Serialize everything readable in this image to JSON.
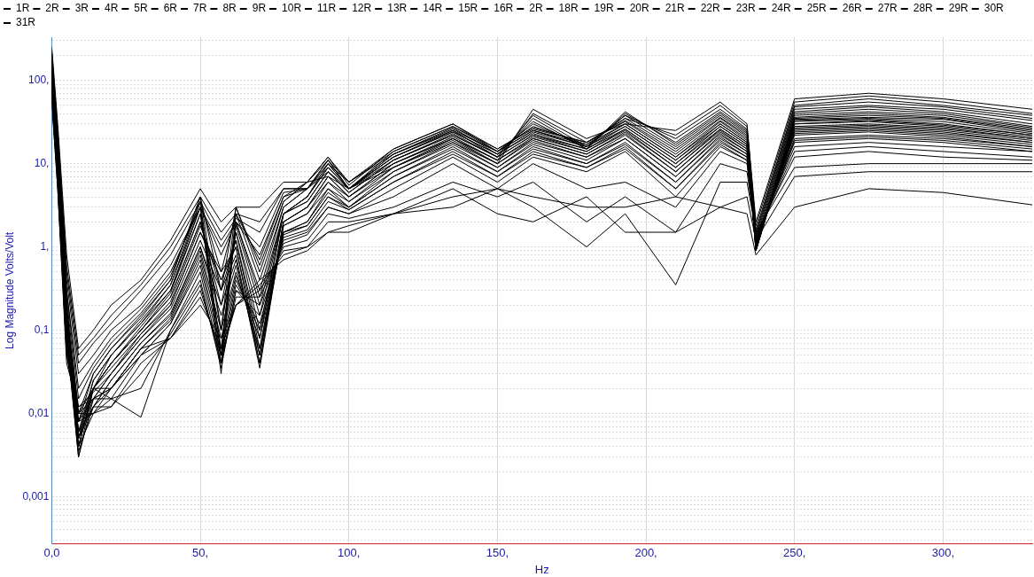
{
  "chart_data": {
    "type": "line",
    "xlabel": "Hz",
    "ylabel": "Log Magnitude Volts/Volt",
    "log": "y",
    "grid": true,
    "legend": "top",
    "marker": "none",
    "xlim": [
      0,
      330
    ],
    "ylim": [
      0.00027,
      330
    ],
    "xticks": [
      {
        "value": 0,
        "label": "0,0"
      },
      {
        "value": 50,
        "label": "50,"
      },
      {
        "value": 100,
        "label": "100,"
      },
      {
        "value": 150,
        "label": "150,"
      },
      {
        "value": 200,
        "label": "200,"
      },
      {
        "value": 250,
        "label": "250,"
      },
      {
        "value": 300,
        "label": "300,"
      }
    ],
    "yticks": [
      {
        "value": 0.0003,
        "label": null
      },
      {
        "value": 0.0004,
        "label": null
      },
      {
        "value": 0.0005,
        "label": null
      },
      {
        "value": 0.0006,
        "label": null
      },
      {
        "value": 0.0007,
        "label": null
      },
      {
        "value": 0.0008,
        "label": null
      },
      {
        "value": 0.0009,
        "label": null
      },
      {
        "value": 0.001,
        "label": "0,001"
      },
      {
        "value": 0.002,
        "label": null
      },
      {
        "value": 0.003,
        "label": null
      },
      {
        "value": 0.004,
        "label": null
      },
      {
        "value": 0.005,
        "label": null
      },
      {
        "value": 0.006,
        "label": null
      },
      {
        "value": 0.007,
        "label": null
      },
      {
        "value": 0.008,
        "label": null
      },
      {
        "value": 0.009,
        "label": null
      },
      {
        "value": 0.01,
        "label": "0,01"
      },
      {
        "value": 0.02,
        "label": null
      },
      {
        "value": 0.03,
        "label": null
      },
      {
        "value": 0.04,
        "label": null
      },
      {
        "value": 0.05,
        "label": null
      },
      {
        "value": 0.06,
        "label": null
      },
      {
        "value": 0.07,
        "label": null
      },
      {
        "value": 0.08,
        "label": null
      },
      {
        "value": 0.09,
        "label": null
      },
      {
        "value": 0.1,
        "label": "0,1"
      },
      {
        "value": 0.2,
        "label": null
      },
      {
        "value": 0.3,
        "label": null
      },
      {
        "value": 0.4,
        "label": null
      },
      {
        "value": 0.5,
        "label": null
      },
      {
        "value": 0.6,
        "label": null
      },
      {
        "value": 0.7,
        "label": null
      },
      {
        "value": 0.8,
        "label": null
      },
      {
        "value": 0.9,
        "label": null
      },
      {
        "value": 1,
        "label": "1,"
      },
      {
        "value": 2,
        "label": null
      },
      {
        "value": 3,
        "label": null
      },
      {
        "value": 4,
        "label": null
      },
      {
        "value": 5,
        "label": null
      },
      {
        "value": 6,
        "label": null
      },
      {
        "value": 7,
        "label": null
      },
      {
        "value": 8,
        "label": null
      },
      {
        "value": 9,
        "label": null
      },
      {
        "value": 10,
        "label": "10,"
      },
      {
        "value": 20,
        "label": null
      },
      {
        "value": 30,
        "label": null
      },
      {
        "value": 40,
        "label": null
      },
      {
        "value": 50,
        "label": null
      },
      {
        "value": 60,
        "label": null
      },
      {
        "value": 70,
        "label": null
      },
      {
        "value": 80,
        "label": null
      },
      {
        "value": 90,
        "label": null
      },
      {
        "value": 100,
        "label": "100,"
      },
      {
        "value": 200,
        "label": null
      },
      {
        "value": 300,
        "label": null
      }
    ],
    "x": [
      0,
      2,
      5,
      9,
      14,
      20,
      30,
      40,
      50,
      57,
      62,
      70,
      78,
      86,
      93,
      100,
      115,
      135,
      150,
      162,
      180,
      193,
      210,
      225,
      234,
      237,
      250,
      275,
      300,
      330
    ],
    "series": [
      {
        "name": "1R",
        "color": "#000000",
        "values": [
          250,
          30,
          0.8,
          0.06,
          0.1,
          0.2,
          0.4,
          1.2,
          5,
          2,
          3,
          3,
          6,
          6,
          7,
          5,
          9,
          18,
          10,
          45,
          20,
          30,
          25,
          55,
          30,
          2,
          60,
          70,
          60,
          45
        ]
      },
      {
        "name": "2R",
        "color": "#000000",
        "values": [
          230,
          25,
          0.6,
          0.05,
          0.08,
          0.15,
          0.35,
          1,
          4,
          1.5,
          2.5,
          2,
          5,
          5,
          8,
          5,
          10,
          20,
          11,
          40,
          18,
          35,
          22,
          50,
          28,
          1.8,
          55,
          65,
          55,
          40
        ]
      },
      {
        "name": "3R",
        "color": "#000000",
        "values": [
          210,
          22,
          0.5,
          0.04,
          0.07,
          0.12,
          0.3,
          0.8,
          3.5,
          1.2,
          2.2,
          1.5,
          5,
          5,
          9,
          5,
          11,
          22,
          12,
          38,
          16,
          38,
          20,
          45,
          26,
          1.6,
          50,
          60,
          50,
          38
        ]
      },
      {
        "name": "4R",
        "color": "#000000",
        "values": [
          200,
          20,
          0.4,
          0.03,
          0.05,
          0.1,
          0.2,
          0.6,
          3,
          1,
          2,
          1,
          4.5,
          5,
          10,
          5,
          12,
          25,
          12,
          35,
          15,
          40,
          18,
          42,
          25,
          1.5,
          48,
          55,
          48,
          35
        ]
      },
      {
        "name": "5R",
        "color": "#000000",
        "values": [
          190,
          18,
          0.3,
          0.02,
          0.04,
          0.08,
          0.18,
          0.5,
          3,
          0.8,
          2,
          0.8,
          4,
          5,
          11,
          5,
          13,
          27,
          13,
          32,
          15,
          42,
          17,
          40,
          24,
          1.4,
          45,
          50,
          45,
          33
        ]
      },
      {
        "name": "6R",
        "color": "#000000",
        "values": [
          180,
          18,
          0.3,
          0.015,
          0.035,
          0.07,
          0.16,
          0.45,
          3.5,
          0.5,
          2.5,
          0.7,
          4,
          6,
          11,
          5,
          14,
          28,
          14,
          30,
          16,
          38,
          16,
          38,
          23,
          1.3,
          42,
          48,
          42,
          30
        ]
      },
      {
        "name": "7R",
        "color": "#000000",
        "values": [
          170,
          17,
          0.25,
          0.01,
          0.03,
          0.06,
          0.15,
          0.4,
          4,
          0.3,
          3,
          0.6,
          3.5,
          6,
          12,
          5.5,
          15,
          30,
          14,
          28,
          17,
          35,
          15,
          36,
          22,
          1.2,
          40,
          45,
          40,
          28
        ]
      },
      {
        "name": "8R",
        "color": "#000000",
        "values": [
          160,
          16,
          0.2,
          0.008,
          0.03,
          0.06,
          0.14,
          0.4,
          4,
          0.1,
          3,
          0.5,
          3.5,
          6,
          12,
          6,
          15,
          30,
          15,
          27,
          18,
          33,
          14,
          35,
          21,
          1.1,
          38,
          42,
          38,
          27
        ]
      },
      {
        "name": "9R",
        "color": "#000000",
        "values": [
          150,
          15,
          0.2,
          0.006,
          0.025,
          0.05,
          0.13,
          0.35,
          3.5,
          0.05,
          2.5,
          0.4,
          3,
          5,
          11,
          6,
          14,
          28,
          15,
          26,
          18,
          32,
          13,
          33,
          20,
          1,
          36,
          40,
          36,
          26
        ]
      },
      {
        "name": "10R",
        "color": "#000000",
        "values": [
          150,
          15,
          0.2,
          0.005,
          0.025,
          0.05,
          0.12,
          0.35,
          3,
          0.04,
          2,
          0.3,
          3,
          5,
          10,
          6,
          13,
          26,
          14,
          25,
          17,
          30,
          12,
          32,
          19,
          1,
          35,
          38,
          35,
          25
        ]
      },
      {
        "name": "11R",
        "color": "#000000",
        "values": [
          140,
          14,
          0.18,
          0.004,
          0.02,
          0.05,
          0.12,
          0.3,
          3,
          0.03,
          2,
          0.25,
          2.5,
          4,
          10,
          5,
          13,
          25,
          14,
          25,
          16,
          30,
          12,
          30,
          18,
          0.9,
          34,
          36,
          34,
          24
        ]
      },
      {
        "name": "12R",
        "color": "#000000",
        "values": [
          140,
          14,
          0.18,
          0.004,
          0.02,
          0.04,
          0.11,
          0.3,
          2.5,
          0.06,
          1.8,
          0.2,
          2.5,
          4,
          9,
          5,
          12,
          24,
          13,
          24,
          16,
          28,
          11,
          30,
          18,
          0.9,
          33,
          35,
          32,
          23
        ]
      },
      {
        "name": "13R",
        "color": "#000000",
        "values": [
          130,
          13,
          0.16,
          0.005,
          0.02,
          0.04,
          0.1,
          0.28,
          2.5,
          0.1,
          1.5,
          0.15,
          2.5,
          4,
          9,
          5,
          12,
          24,
          13,
          23,
          15,
          28,
          11,
          28,
          17,
          0.9,
          32,
          34,
          30,
          22
        ]
      },
      {
        "name": "14R",
        "color": "#000000",
        "values": [
          130,
          13,
          0.15,
          0.006,
          0.02,
          0.04,
          0.1,
          0.25,
          2,
          0.2,
          1.5,
          0.1,
          2.5,
          3.5,
          8,
          4.5,
          11,
          23,
          12,
          22,
          15,
          26,
          10,
          28,
          17,
          0.9,
          30,
          33,
          29,
          22
        ]
      },
      {
        "name": "15R",
        "color": "#000000",
        "values": [
          120,
          12,
          0.15,
          0.008,
          0.02,
          0.04,
          0.1,
          0.25,
          2,
          0.3,
          1.2,
          0.08,
          2.5,
          3.5,
          8,
          4.5,
          11,
          22,
          12,
          22,
          14,
          26,
          10,
          26,
          16,
          1,
          30,
          32,
          28,
          21
        ]
      },
      {
        "name": "16R",
        "color": "#000000",
        "values": [
          120,
          12,
          0.14,
          0.01,
          0.02,
          0.035,
          0.09,
          0.22,
          1.8,
          0.4,
          1.2,
          0.06,
          2,
          3,
          7,
          4,
          10,
          21,
          11,
          21,
          14,
          25,
          9,
          26,
          16,
          1,
          28,
          30,
          27,
          20
        ]
      },
      {
        "name": "2R",
        "color": "#000000",
        "values": [
          110,
          11,
          0.13,
          0.012,
          0.018,
          0.03,
          0.09,
          0.2,
          1.5,
          0.5,
          1,
          0.05,
          2,
          3,
          7,
          4,
          10,
          20,
          11,
          20,
          13,
          24,
          9,
          25,
          15,
          1,
          27,
          29,
          26,
          20
        ]
      },
      {
        "name": "18R",
        "color": "#000000",
        "values": [
          110,
          11,
          0.12,
          0.01,
          0.015,
          0.03,
          0.08,
          0.2,
          1.5,
          0.4,
          1,
          0.04,
          2,
          3,
          6,
          4,
          9,
          20,
          10,
          20,
          13,
          23,
          8,
          24,
          15,
          1,
          26,
          28,
          25,
          19
        ]
      },
      {
        "name": "19R",
        "color": "#000000",
        "values": [
          100,
          10,
          0.12,
          0.008,
          0.015,
          0.03,
          0.08,
          0.18,
          1.2,
          0.3,
          0.8,
          0.035,
          1.8,
          2.5,
          6,
          3.5,
          9,
          19,
          10,
          19,
          12,
          22,
          8,
          23,
          14,
          1.1,
          25,
          27,
          24,
          18
        ]
      },
      {
        "name": "20R",
        "color": "#000000",
        "values": [
          100,
          10,
          0.1,
          0.006,
          0.012,
          0.025,
          0.07,
          0.16,
          1,
          0.2,
          0.7,
          0.04,
          1.8,
          2.5,
          5,
          3.5,
          8,
          18,
          9,
          18,
          12,
          20,
          7,
          22,
          14,
          1.1,
          24,
          26,
          23,
          18
        ]
      },
      {
        "name": "21R",
        "color": "#000000",
        "values": [
          95,
          9,
          0.1,
          0.005,
          0.012,
          0.025,
          0.07,
          0.15,
          1,
          0.15,
          0.6,
          0.05,
          1.5,
          2,
          5,
          3,
          8,
          17,
          9,
          17,
          11,
          20,
          7,
          21,
          13,
          1.1,
          23,
          25,
          22,
          17
        ]
      },
      {
        "name": "22R",
        "color": "#000000",
        "values": [
          90,
          9,
          0.1,
          0.004,
          0.01,
          0.02,
          0.06,
          0.14,
          0.9,
          0.1,
          0.5,
          0.06,
          1.5,
          2,
          4.5,
          3,
          7,
          16,
          8,
          16,
          10,
          18,
          6,
          20,
          13,
          1.1,
          22,
          24,
          21,
          16
        ]
      },
      {
        "name": "23R",
        "color": "#000000",
        "values": [
          90,
          8,
          0.09,
          0.0035,
          0.012,
          0.02,
          0.06,
          0.13,
          0.8,
          0.08,
          0.45,
          0.08,
          1.5,
          1.8,
          4,
          3,
          7,
          15,
          8,
          15,
          10,
          17,
          6,
          19,
          12,
          1.2,
          20,
          22,
          20,
          16
        ]
      },
      {
        "name": "24R",
        "color": "#000000",
        "values": [
          85,
          8,
          0.09,
          0.003,
          0.015,
          0.02,
          0.05,
          0.12,
          0.7,
          0.06,
          0.4,
          0.1,
          1.4,
          1.8,
          4,
          2.8,
          6,
          14,
          7,
          14,
          9,
          16,
          5,
          18,
          12,
          1.2,
          19,
          21,
          19,
          15
        ]
      },
      {
        "name": "25R",
        "color": "#000000",
        "values": [
          80,
          8,
          0.08,
          0.003,
          0.02,
          0.02,
          0.05,
          0.12,
          0.6,
          0.05,
          0.35,
          0.12,
          1.3,
          1.6,
          3.5,
          2.8,
          6,
          13,
          7,
          13,
          9,
          15,
          5,
          17,
          11,
          1.2,
          18,
          20,
          18,
          14
        ]
      },
      {
        "name": "26R",
        "color": "#000000",
        "values": [
          80,
          7,
          0.08,
          0.004,
          0.02,
          0.015,
          0.009,
          0.1,
          0.5,
          0.04,
          0.3,
          0.15,
          1.2,
          1.5,
          3,
          2.5,
          5,
          12,
          6,
          12,
          8,
          14,
          4,
          16,
          11,
          1.3,
          16,
          18,
          16,
          14
        ]
      },
      {
        "name": "27R",
        "color": "#000000",
        "values": [
          75,
          7,
          0.07,
          0.005,
          0.015,
          0.015,
          0.02,
          0.1,
          0.4,
          0.035,
          0.3,
          0.2,
          1.1,
          1.4,
          3,
          2.5,
          4,
          10,
          5,
          10,
          5,
          6,
          3,
          14,
          10,
          1.3,
          14,
          16,
          14,
          12
        ]
      },
      {
        "name": "28R",
        "color": "#000000",
        "values": [
          70,
          6,
          0.06,
          0.006,
          0.012,
          0.012,
          0.03,
          0.09,
          0.35,
          0.04,
          0.25,
          0.25,
          1,
          1.2,
          2.5,
          2.2,
          3,
          6,
          4,
          6,
          2,
          4,
          1.5,
          10,
          8,
          1.4,
          12,
          14,
          12,
          11
        ]
      },
      {
        "name": "29R",
        "color": "#000000",
        "values": [
          65,
          6,
          0.05,
          0.008,
          0.01,
          0.012,
          0.04,
          0.08,
          0.3,
          0.05,
          0.2,
          0.3,
          0.9,
          1,
          2,
          2,
          2.5,
          3,
          5,
          3,
          1,
          2.5,
          0.35,
          6,
          6,
          1.5,
          9,
          10,
          10,
          10
        ]
      },
      {
        "name": "30R",
        "color": "#000000",
        "values": [
          60,
          5,
          0.05,
          0.01,
          0.01,
          0.015,
          0.05,
          0.08,
          0.25,
          0.06,
          0.2,
          0.35,
          0.8,
          1,
          1.5,
          1.8,
          2.5,
          5,
          2.5,
          2,
          4,
          1.5,
          1.5,
          3,
          4,
          1.2,
          7,
          8,
          8,
          8
        ]
      },
      {
        "name": "31R",
        "color": "#000000",
        "values": [
          55,
          5,
          0.04,
          0.012,
          0.015,
          0.02,
          0.06,
          0.08,
          0.2,
          0.08,
          0.2,
          0.4,
          0.7,
          0.9,
          1.5,
          1.5,
          2.5,
          4,
          5,
          4,
          3,
          3,
          4,
          3,
          2.5,
          0.8,
          3,
          5,
          4.5,
          3.2
        ]
      }
    ]
  }
}
